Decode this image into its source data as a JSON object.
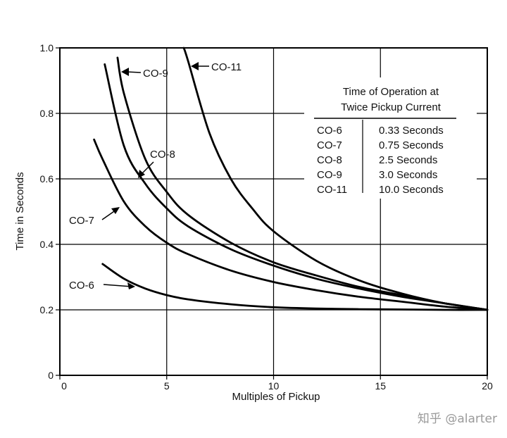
{
  "chart_data": {
    "type": "line",
    "xlabel": "Multiples of Pickup",
    "ylabel": "Time in Seconds",
    "xlim": [
      0,
      20
    ],
    "ylim": [
      0,
      1.0
    ],
    "x_ticks": [
      "0",
      "5",
      "10",
      "15",
      "20"
    ],
    "y_ticks": [
      "0",
      "0.2",
      "0.4",
      "0.6",
      "0.8",
      "1.0"
    ],
    "grid": true,
    "series": [
      {
        "name": "CO-6",
        "x": [
          2,
          3,
          4,
          5,
          6,
          8,
          10,
          12,
          14,
          16,
          18,
          20
        ],
        "y": [
          0.34,
          0.295,
          0.265,
          0.245,
          0.232,
          0.217,
          0.208,
          0.204,
          0.202,
          0.201,
          0.2,
          0.2
        ]
      },
      {
        "name": "CO-7",
        "x": [
          1.6,
          2,
          3,
          4,
          5,
          6,
          8,
          10,
          12,
          14,
          16,
          18,
          20
        ],
        "y": [
          0.72,
          0.66,
          0.53,
          0.455,
          0.405,
          0.37,
          0.32,
          0.285,
          0.26,
          0.24,
          0.225,
          0.21,
          0.2
        ]
      },
      {
        "name": "CO-8",
        "x": [
          2.1,
          3,
          4,
          5,
          6,
          8,
          10,
          12,
          14,
          16,
          18,
          20
        ],
        "y": [
          0.95,
          0.7,
          0.585,
          0.51,
          0.455,
          0.385,
          0.335,
          0.295,
          0.265,
          0.24,
          0.22,
          0.2
        ]
      },
      {
        "name": "CO-9",
        "x": [
          2.7,
          3,
          4,
          5,
          6,
          8,
          10,
          12,
          14,
          16,
          18,
          20
        ],
        "y": [
          0.97,
          0.86,
          0.66,
          0.56,
          0.49,
          0.405,
          0.345,
          0.305,
          0.27,
          0.245,
          0.22,
          0.2
        ]
      },
      {
        "name": "CO-11",
        "x": [
          5.8,
          6,
          7,
          8,
          9,
          10,
          12,
          14,
          16,
          18,
          20
        ],
        "y": [
          1.0,
          0.96,
          0.74,
          0.6,
          0.51,
          0.44,
          0.35,
          0.29,
          0.25,
          0.22,
          0.2
        ]
      }
    ],
    "annotations": [
      "CO-6",
      "CO-7",
      "CO-8",
      "CO-9",
      "CO-11"
    ],
    "table": {
      "title_line1": "Time of Operation at",
      "title_line2": "Twice Pickup Current",
      "rows": [
        {
          "curve": "CO-6",
          "time": "0.33 Seconds"
        },
        {
          "curve": "CO-7",
          "time": "0.75 Seconds"
        },
        {
          "curve": "CO-8",
          "time": "2.5 Seconds"
        },
        {
          "curve": "CO-9",
          "time": "3.0 Seconds"
        },
        {
          "curve": "CO-11",
          "time": "10.0 Seconds"
        }
      ]
    }
  },
  "watermark": "知乎 @alarter"
}
